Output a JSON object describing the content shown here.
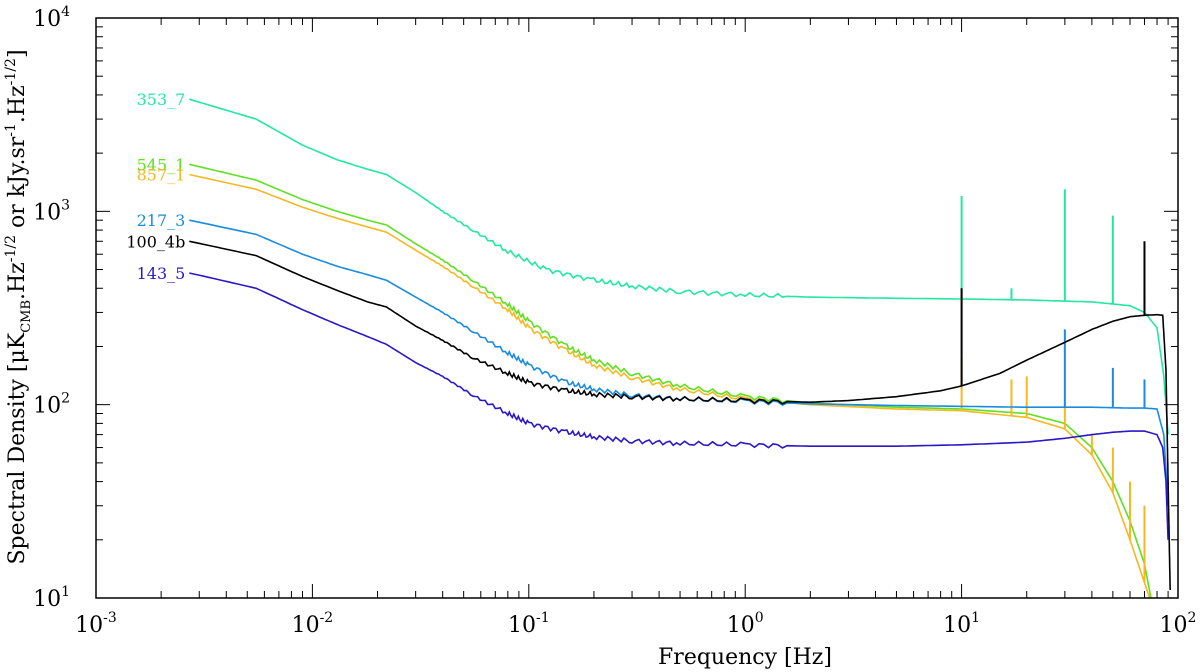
{
  "chart_data": {
    "type": "line",
    "title": "",
    "xlabel": "Frequency [Hz]",
    "ylabel": "Spectral Density [μK_CMB.Hz^-1/2 or kJy.sr^-1.Hz^-1/2]",
    "ylabel_parts": {
      "prefix": "Spectral Density [",
      "mu": "μ",
      "k": "K",
      "k_sub": "CMB",
      "hz1": ".Hz",
      "exp1": "-1/2",
      "mid": " or kJy.sr",
      "exp2": "-1",
      "hz2": ".Hz",
      "exp3": "-1/2",
      "suffix": "]"
    },
    "xscale": "log",
    "yscale": "log",
    "xlim": [
      0.001,
      100
    ],
    "ylim": [
      10,
      10000
    ],
    "x_ticks": [
      {
        "value": 0.001,
        "base": "10",
        "exp": "-3"
      },
      {
        "value": 0.01,
        "base": "10",
        "exp": "-2"
      },
      {
        "value": 0.1,
        "base": "10",
        "exp": "-1"
      },
      {
        "value": 1,
        "base": "10",
        "exp": "0"
      },
      {
        "value": 10,
        "base": "10",
        "exp": "1"
      },
      {
        "value": 100,
        "base": "10",
        "exp": "2"
      }
    ],
    "y_ticks": [
      {
        "value": 10,
        "base": "10",
        "exp": "1"
      },
      {
        "value": 100,
        "base": "10",
        "exp": "2"
      },
      {
        "value": 1000,
        "base": "10",
        "exp": "3"
      },
      {
        "value": 10000,
        "base": "10",
        "exp": "4"
      }
    ],
    "series": [
      {
        "name": "353_7",
        "color": "#22e8a0",
        "points": [
          [
            0.0027,
            3800
          ],
          [
            0.0055,
            3000
          ],
          [
            0.009,
            2200
          ],
          [
            0.013,
            1850
          ],
          [
            0.018,
            1650
          ],
          [
            0.022,
            1550
          ],
          [
            0.03,
            1250
          ],
          [
            0.04,
            1000
          ],
          [
            0.055,
            800
          ],
          [
            0.08,
            620
          ],
          [
            0.12,
            500
          ],
          [
            0.2,
            440
          ],
          [
            0.3,
            410
          ],
          [
            0.5,
            385
          ],
          [
            1,
            370
          ],
          [
            2,
            360
          ],
          [
            5,
            355
          ],
          [
            10,
            352
          ],
          [
            20,
            348
          ],
          [
            40,
            340
          ],
          [
            60,
            325
          ],
          [
            70,
            300
          ],
          [
            80,
            250
          ],
          [
            86,
            140
          ],
          [
            90,
            70
          ]
        ],
        "spikes": [
          [
            10,
            1200
          ],
          [
            17,
            400
          ],
          [
            30,
            1300
          ],
          [
            50,
            950
          ],
          [
            70,
            380
          ]
        ]
      },
      {
        "name": "545_1",
        "color": "#5fe020",
        "points": [
          [
            0.0027,
            1750
          ],
          [
            0.0055,
            1450
          ],
          [
            0.009,
            1150
          ],
          [
            0.013,
            1000
          ],
          [
            0.018,
            900
          ],
          [
            0.022,
            850
          ],
          [
            0.03,
            680
          ],
          [
            0.04,
            560
          ],
          [
            0.055,
            440
          ],
          [
            0.08,
            330
          ],
          [
            0.1,
            270
          ],
          [
            0.15,
            200
          ],
          [
            0.2,
            170
          ],
          [
            0.3,
            145
          ],
          [
            0.5,
            125
          ],
          [
            1,
            110
          ],
          [
            2,
            102
          ],
          [
            5,
            97
          ],
          [
            10,
            95
          ],
          [
            20,
            90
          ],
          [
            30,
            80
          ],
          [
            40,
            60
          ],
          [
            50,
            40
          ],
          [
            60,
            25
          ],
          [
            70,
            15
          ],
          [
            75,
            10
          ]
        ],
        "spikes": []
      },
      {
        "name": "857_1",
        "color": "#f5b820",
        "points": [
          [
            0.0027,
            1550
          ],
          [
            0.0055,
            1300
          ],
          [
            0.009,
            1050
          ],
          [
            0.013,
            920
          ],
          [
            0.018,
            830
          ],
          [
            0.022,
            780
          ],
          [
            0.03,
            630
          ],
          [
            0.04,
            520
          ],
          [
            0.055,
            410
          ],
          [
            0.08,
            310
          ],
          [
            0.1,
            250
          ],
          [
            0.15,
            190
          ],
          [
            0.2,
            160
          ],
          [
            0.3,
            138
          ],
          [
            0.5,
            120
          ],
          [
            1,
            107
          ],
          [
            2,
            100
          ],
          [
            5,
            95
          ],
          [
            10,
            93
          ],
          [
            20,
            86
          ],
          [
            30,
            75
          ],
          [
            40,
            55
          ],
          [
            50,
            35
          ],
          [
            60,
            20
          ],
          [
            70,
            12
          ],
          [
            74,
            10
          ]
        ],
        "spikes": [
          [
            10,
            175
          ],
          [
            17,
            135
          ],
          [
            20,
            140
          ],
          [
            30,
            100
          ],
          [
            40,
            70
          ],
          [
            50,
            60
          ],
          [
            60,
            40
          ],
          [
            70,
            30
          ]
        ]
      },
      {
        "name": "217_3",
        "color": "#1a8ce0",
        "points": [
          [
            0.0027,
            900
          ],
          [
            0.0055,
            760
          ],
          [
            0.009,
            600
          ],
          [
            0.013,
            520
          ],
          [
            0.018,
            470
          ],
          [
            0.022,
            440
          ],
          [
            0.03,
            360
          ],
          [
            0.04,
            300
          ],
          [
            0.055,
            240
          ],
          [
            0.08,
            185
          ],
          [
            0.1,
            160
          ],
          [
            0.15,
            130
          ],
          [
            0.2,
            120
          ],
          [
            0.3,
            112
          ],
          [
            0.5,
            107
          ],
          [
            1,
            104
          ],
          [
            2,
            101
          ],
          [
            5,
            99
          ],
          [
            10,
            98
          ],
          [
            20,
            97
          ],
          [
            40,
            97
          ],
          [
            60,
            96
          ],
          [
            70,
            96
          ],
          [
            80,
            95
          ],
          [
            86,
            70
          ],
          [
            90,
            30
          ]
        ],
        "spikes": [
          [
            30,
            245
          ],
          [
            50,
            155
          ],
          [
            70,
            135
          ]
        ]
      },
      {
        "name": "100_4b",
        "color": "#000000",
        "points": [
          [
            0.0027,
            700
          ],
          [
            0.0055,
            590
          ],
          [
            0.009,
            460
          ],
          [
            0.013,
            390
          ],
          [
            0.018,
            340
          ],
          [
            0.022,
            320
          ],
          [
            0.03,
            255
          ],
          [
            0.04,
            215
          ],
          [
            0.055,
            175
          ],
          [
            0.08,
            145
          ],
          [
            0.1,
            130
          ],
          [
            0.15,
            118
          ],
          [
            0.2,
            113
          ],
          [
            0.3,
            110
          ],
          [
            0.5,
            107
          ],
          [
            1,
            105
          ],
          [
            2,
            103
          ],
          [
            3,
            105
          ],
          [
            5,
            110
          ],
          [
            8,
            118
          ],
          [
            10,
            125
          ],
          [
            15,
            145
          ],
          [
            20,
            170
          ],
          [
            30,
            210
          ],
          [
            40,
            245
          ],
          [
            50,
            270
          ],
          [
            60,
            285
          ],
          [
            70,
            290
          ],
          [
            80,
            292
          ],
          [
            85,
            290
          ],
          [
            88,
            150
          ],
          [
            90,
            40
          ],
          [
            92,
            11
          ]
        ],
        "spikes": [
          [
            10,
            400
          ],
          [
            70,
            700
          ]
        ]
      },
      {
        "name": "143_5",
        "color": "#2a18c8",
        "points": [
          [
            0.0027,
            480
          ],
          [
            0.0055,
            400
          ],
          [
            0.009,
            310
          ],
          [
            0.013,
            260
          ],
          [
            0.018,
            225
          ],
          [
            0.022,
            205
          ],
          [
            0.03,
            165
          ],
          [
            0.04,
            140
          ],
          [
            0.055,
            112
          ],
          [
            0.08,
            90
          ],
          [
            0.1,
            80
          ],
          [
            0.15,
            72
          ],
          [
            0.2,
            68
          ],
          [
            0.3,
            65
          ],
          [
            0.5,
            63
          ],
          [
            1,
            62
          ],
          [
            2,
            61
          ],
          [
            5,
            61
          ],
          [
            10,
            62
          ],
          [
            20,
            64
          ],
          [
            30,
            67
          ],
          [
            40,
            70
          ],
          [
            50,
            72
          ],
          [
            60,
            73
          ],
          [
            70,
            73
          ],
          [
            80,
            70
          ],
          [
            85,
            60
          ],
          [
            88,
            40
          ],
          [
            90,
            20
          ]
        ],
        "spikes": []
      }
    ]
  }
}
